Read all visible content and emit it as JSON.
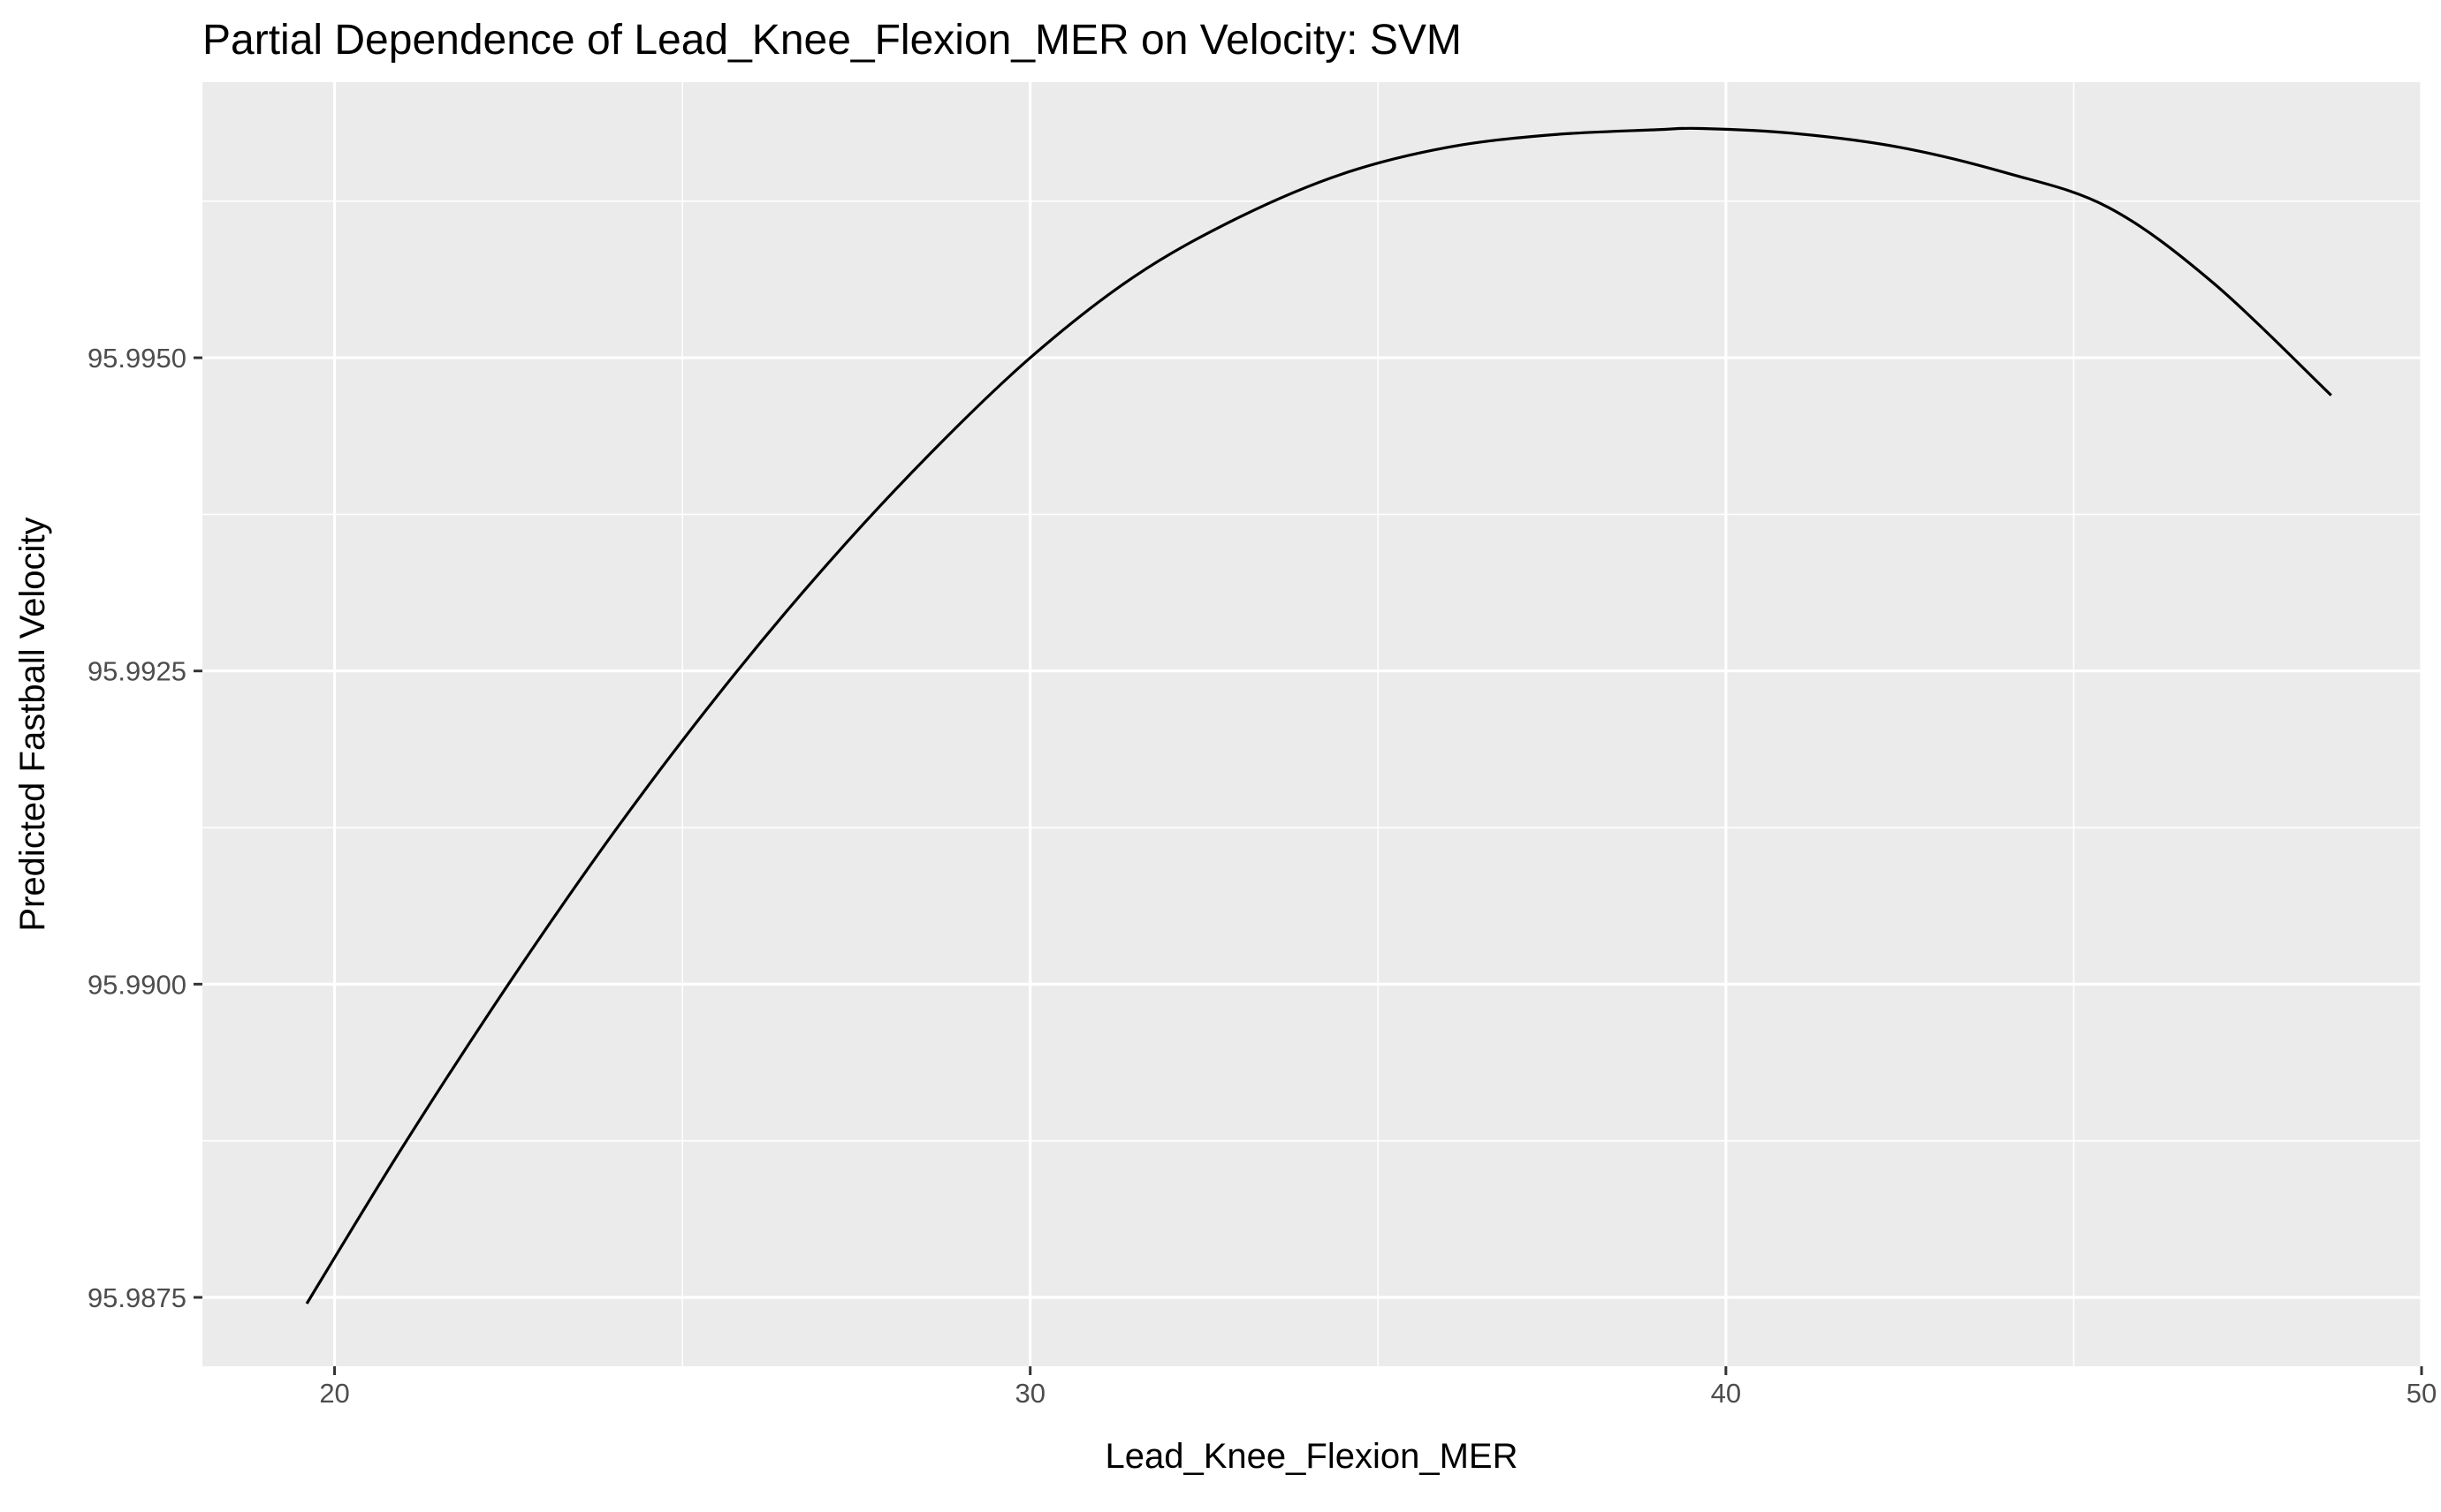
{
  "chart_data": {
    "type": "line",
    "title": "Partial Dependence of Lead_Knee_Flexion_MER on Velocity: SVM",
    "xlabel": "Lead_Knee_Flexion_MER",
    "ylabel": "Predicted Fastball Velocity",
    "xlim": [
      18.1,
      50.0
    ],
    "ylim": [
      95.98695,
      95.9972
    ],
    "x_ticks": [
      20,
      30,
      40,
      50
    ],
    "x_tick_labels": [
      "20",
      "30",
      "40",
      "50"
    ],
    "y_ticks": [
      95.9875,
      95.99,
      95.9925,
      95.995
    ],
    "y_tick_labels": [
      "95.9875",
      "95.9900",
      "95.9925",
      "95.9950"
    ],
    "x_minor_ticks": [
      25,
      35,
      45
    ],
    "y_minor_ticks": [
      95.98875,
      95.99125,
      95.99375,
      95.99625
    ],
    "grid": true,
    "legend": "none",
    "colors": {
      "panel": "#ebebeb",
      "grid": "#ffffff",
      "line": "#000000"
    },
    "series": [
      {
        "x": [
          19.6,
          21.0,
          22.5,
          24.0,
          25.5,
          27.0,
          28.5,
          30.0,
          31.5,
          33.0,
          34.5,
          36.0,
          37.5,
          39.0,
          39.65,
          41.0,
          42.5,
          44.0,
          45.5,
          47.0,
          48.7
        ],
        "y": [
          95.98745,
          95.98872,
          95.99,
          95.9912,
          95.9923,
          95.9933,
          95.9942,
          95.995,
          95.99565,
          95.99612,
          95.99647,
          95.99668,
          95.99678,
          95.99682,
          95.99683,
          95.99679,
          95.99668,
          95.99648,
          95.9962,
          95.9956,
          95.9947
        ]
      }
    ]
  }
}
